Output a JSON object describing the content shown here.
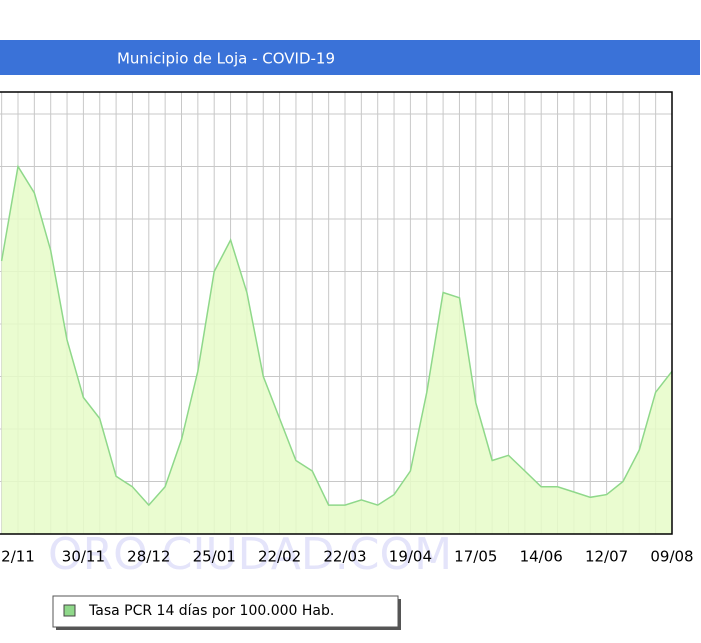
{
  "chart_data": {
    "type": "area",
    "title": "Municipio de Loja - COVID-19",
    "watermark": "ORO CIUDAD.COM",
    "categories": [
      null,
      "2/11",
      null,
      null,
      null,
      "30/11",
      null,
      null,
      null,
      "28/12",
      null,
      null,
      null,
      "25/01",
      null,
      null,
      null,
      "22/02",
      null,
      null,
      null,
      "22/03",
      null,
      null,
      null,
      "19/04",
      null,
      null,
      null,
      "17/05",
      null,
      null,
      null,
      "14/06",
      null,
      null,
      null,
      "12/07",
      null,
      null,
      null,
      "09/08"
    ],
    "series": [
      {
        "name": "Tasa PCR 14 días por 100.000 Hab.",
        "color": "#e6fbc8",
        "line_color": "#8fd88a",
        "values": [
          5.2,
          7.0,
          6.5,
          5.4,
          3.7,
          2.6,
          2.2,
          1.1,
          0.9,
          0.55,
          0.9,
          1.8,
          3.1,
          5.0,
          5.6,
          4.6,
          3.0,
          2.2,
          1.4,
          1.2,
          0.55,
          0.55,
          0.65,
          0.55,
          0.75,
          1.2,
          2.7,
          4.6,
          4.5,
          2.5,
          1.4,
          1.5,
          1.2,
          0.9,
          0.9,
          0.8,
          0.7,
          0.75,
          1.0,
          1.6,
          2.7,
          3.1
        ]
      }
    ],
    "ylim": [
      0,
      8.42
    ],
    "yticks": [
      1,
      2,
      3,
      4,
      5,
      6,
      7,
      8
    ],
    "grid": true
  }
}
